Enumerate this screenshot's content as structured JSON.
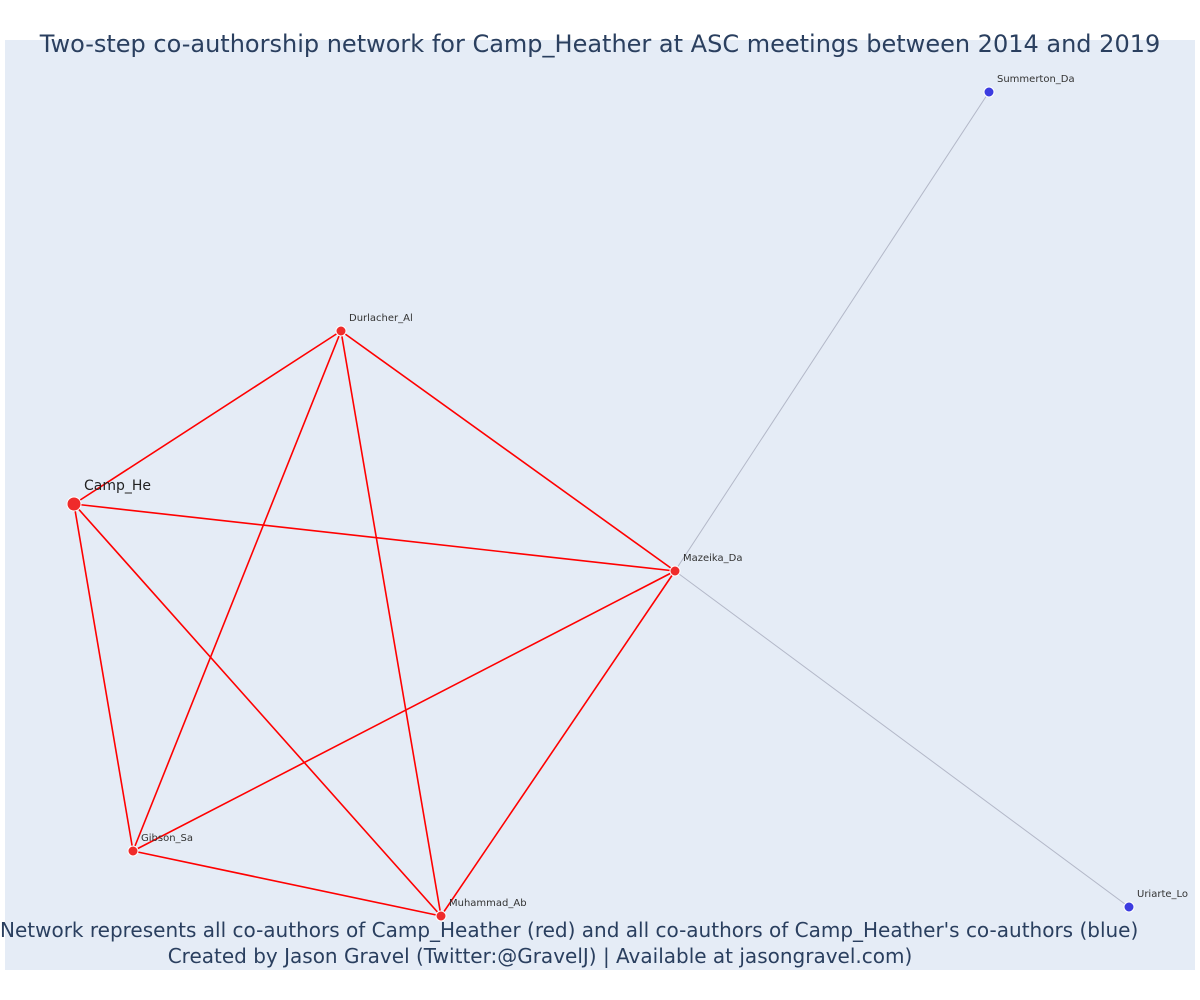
{
  "title": "Two-step co-authorship network for Camp_Heather at ASC meetings between 2014 and 2019",
  "caption": {
    "line1": "Network represents all co-authors of Camp_Heather (red) and all co-authors of Camp_Heather's co-authors (blue)",
    "line2": "Created by Jason Gravel (Twitter:@GravelJ) | Available at jasongravel.com)"
  },
  "colors": {
    "background": "#e5ecf6",
    "coauthor_node": "#ef2b2b",
    "second_step_node": "#3c3ce0",
    "coauthor_edge": "#ff0000",
    "second_step_edge": "#b3b8c8",
    "text": "#2a3f5f"
  },
  "chart_data": {
    "type": "network",
    "ego": "Camp_He",
    "nodes": [
      {
        "id": "Camp_He",
        "label": "Camp_He",
        "group": "ego"
      },
      {
        "id": "Durlacher_Al",
        "label": "Durlacher_Al",
        "group": "coauthor"
      },
      {
        "id": "Mazeika_Da",
        "label": "Mazeika_Da",
        "group": "coauthor"
      },
      {
        "id": "Gibson_Sa",
        "label": "Gibson_Sa",
        "group": "coauthor"
      },
      {
        "id": "Muhammad_Ab",
        "label": "Muhammad_Ab",
        "group": "coauthor"
      },
      {
        "id": "Summerton_Da",
        "label": "Summerton_Da",
        "group": "second_step"
      },
      {
        "id": "Uriarte_Lo",
        "label": "Uriarte_Lo",
        "group": "second_step"
      }
    ],
    "edges": [
      {
        "source": "Camp_He",
        "target": "Durlacher_Al",
        "type": "coauthor"
      },
      {
        "source": "Camp_He",
        "target": "Mazeika_Da",
        "type": "coauthor"
      },
      {
        "source": "Camp_He",
        "target": "Gibson_Sa",
        "type": "coauthor"
      },
      {
        "source": "Camp_He",
        "target": "Muhammad_Ab",
        "type": "coauthor"
      },
      {
        "source": "Durlacher_Al",
        "target": "Mazeika_Da",
        "type": "coauthor"
      },
      {
        "source": "Durlacher_Al",
        "target": "Gibson_Sa",
        "type": "coauthor"
      },
      {
        "source": "Durlacher_Al",
        "target": "Muhammad_Ab",
        "type": "coauthor"
      },
      {
        "source": "Mazeika_Da",
        "target": "Gibson_Sa",
        "type": "coauthor"
      },
      {
        "source": "Mazeika_Da",
        "target": "Muhammad_Ab",
        "type": "coauthor"
      },
      {
        "source": "Gibson_Sa",
        "target": "Muhammad_Ab",
        "type": "coauthor"
      },
      {
        "source": "Mazeika_Da",
        "target": "Summerton_Da",
        "type": "second_step"
      },
      {
        "source": "Mazeika_Da",
        "target": "Uriarte_Lo",
        "type": "second_step"
      }
    ]
  }
}
